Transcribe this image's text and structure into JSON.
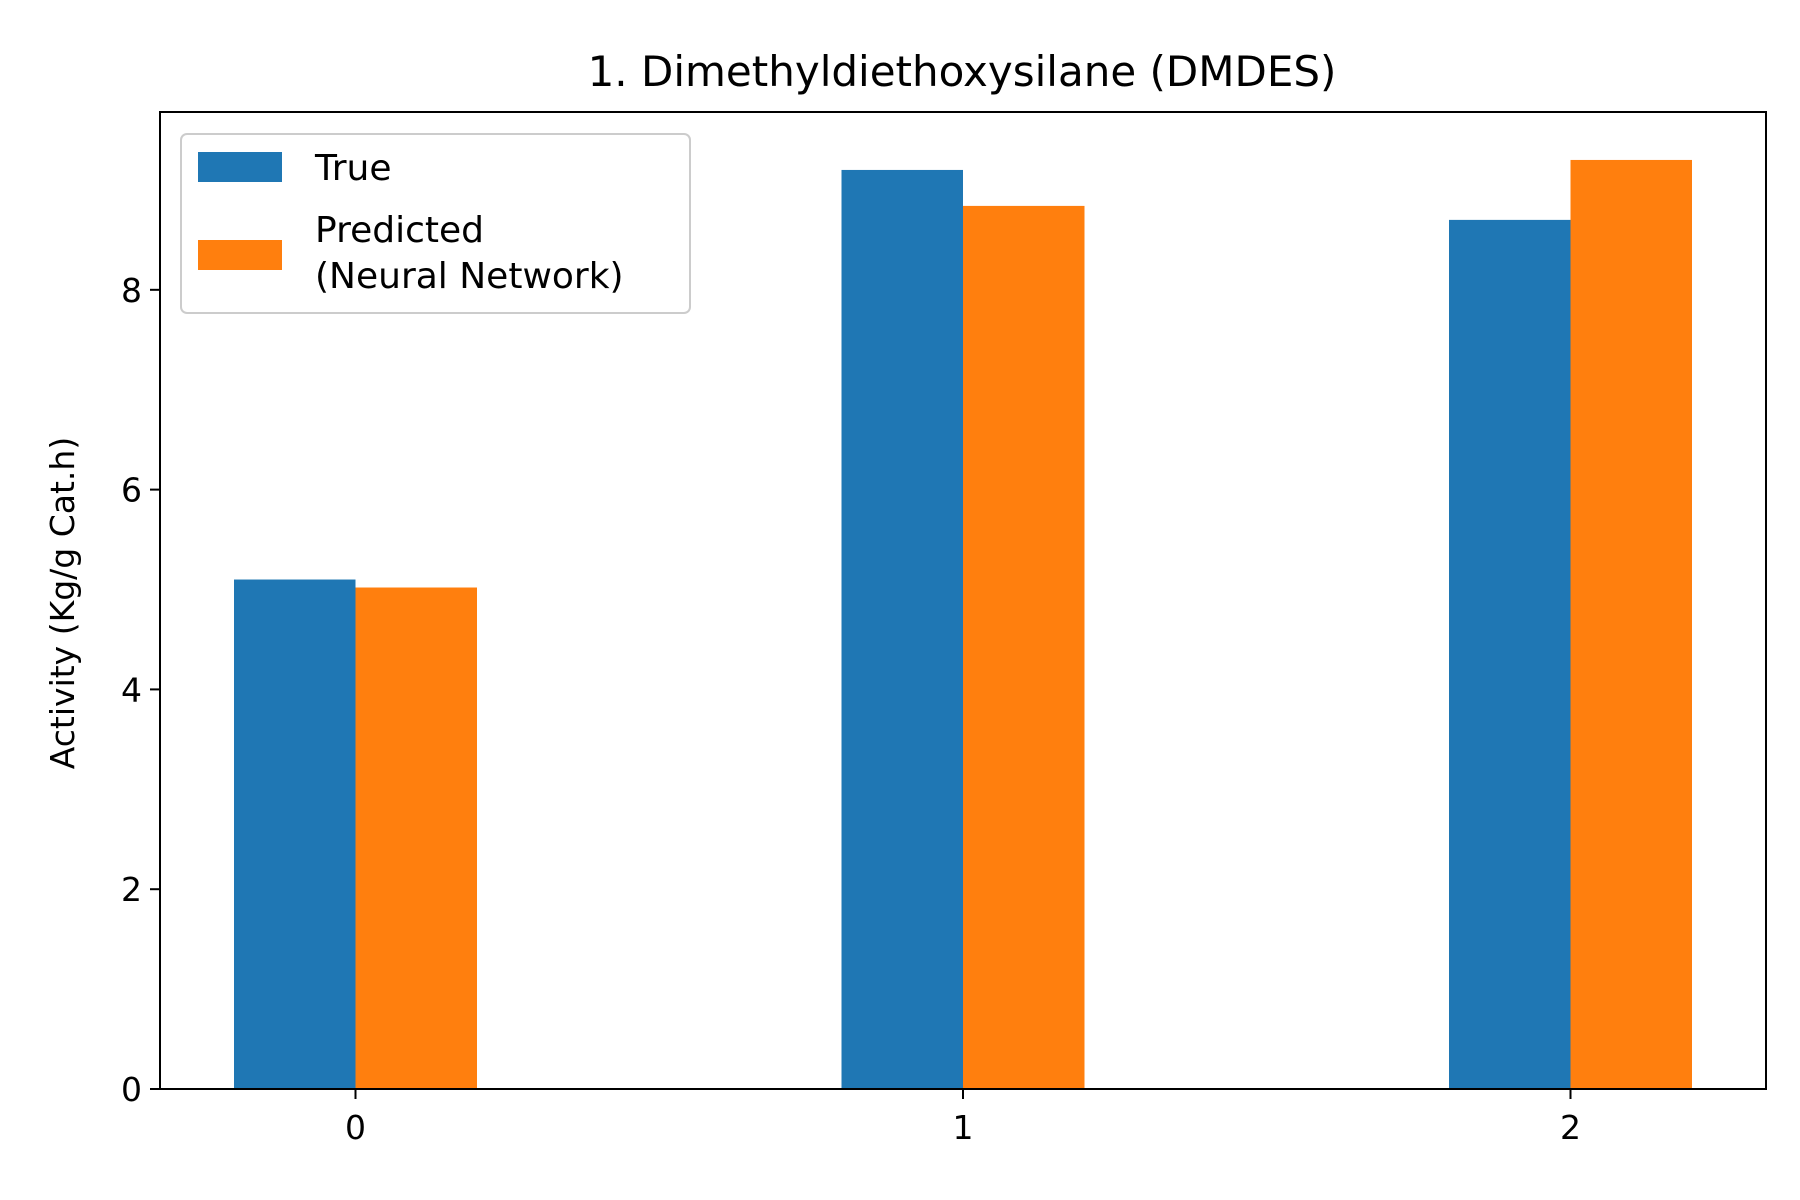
{
  "chart_data": {
    "type": "bar",
    "title": "1. Dimethyldiethoxysilane (DMDES)",
    "xlabel": "",
    "ylabel": "Activity (Kg/g Cat.h)",
    "categories": [
      "0",
      "1",
      "2"
    ],
    "series": [
      {
        "name": "True",
        "values": [
          5.1,
          9.2,
          8.7
        ],
        "color": "#1f77b4"
      },
      {
        "name_lines": [
          "Predicted",
          "(Neural Network)"
        ],
        "values": [
          5.02,
          8.84,
          9.3
        ],
        "color": "#ff7f0e"
      }
    ],
    "ylim": [
      0,
      9.78
    ],
    "yticks": [
      0,
      2,
      4,
      6,
      8
    ],
    "grid": false,
    "legend_position": "top-left"
  }
}
